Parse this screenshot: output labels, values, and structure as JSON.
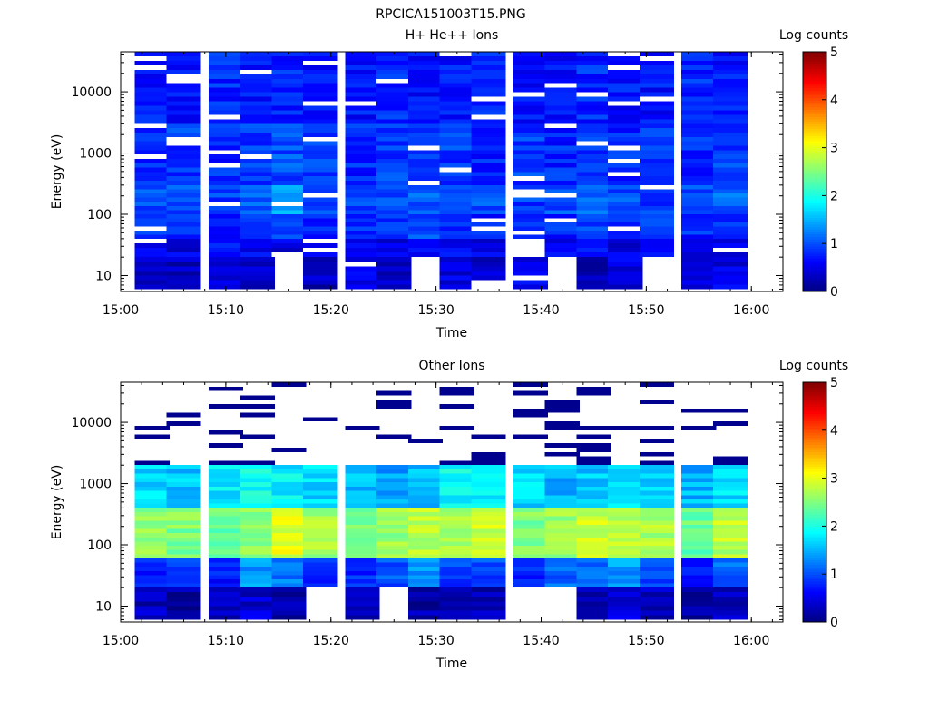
{
  "figure": {
    "title": "RPCICA151003T15.PNG"
  },
  "chart_data": [
    {
      "type": "heatmap",
      "title": "H+ He++ Ions",
      "xlabel": "Time",
      "ylabel": "Energy (eV)",
      "x_ticks": [
        "15:00",
        "15:10",
        "15:20",
        "15:30",
        "15:40",
        "15:50",
        "16:00"
      ],
      "xlim": [
        "15:00",
        "16:03"
      ],
      "y_scale": "log",
      "y_ticks": [
        10,
        100,
        1000,
        10000
      ],
      "ylim": [
        5.5,
        45000
      ],
      "colorbar": {
        "label": "Log counts",
        "min": 0,
        "max": 5,
        "ticks": [
          0,
          1,
          2,
          3,
          4,
          5
        ]
      },
      "time_bins": [
        "15:03",
        "15:06",
        "15:10",
        "15:13",
        "15:16",
        "15:19",
        "15:23",
        "15:26",
        "15:29",
        "15:32",
        "15:35",
        "15:39",
        "15:42",
        "15:45",
        "15:48",
        "15:51",
        "15:55",
        "15:58"
      ],
      "band_log_counts": [
        {
          "energy_range": [
            6,
            20
          ],
          "log_counts": [
            0.4,
            0.3,
            0.5,
            0.4,
            null,
            0.3,
            0.5,
            0.4,
            null,
            0.5,
            0.4,
            0.6,
            null,
            0.3,
            0.5,
            null,
            0.4,
            0.5
          ]
        },
        {
          "energy_range": [
            20,
            40
          ],
          "log_counts": [
            0.6,
            0.5,
            0.7,
            0.6,
            0.5,
            0.7,
            0.6,
            0.5,
            0.7,
            0.6,
            0.5,
            null,
            0.6,
            0.7,
            0.5,
            0.6,
            0.5,
            0.6
          ]
        },
        {
          "energy_range": [
            40,
            100
          ],
          "log_counts": [
            0.8,
            0.9,
            0.8,
            1.0,
            0.9,
            0.8,
            0.9,
            0.8,
            1.0,
            0.9,
            0.8,
            0.9,
            0.8,
            0.9,
            0.8,
            0.9,
            0.8,
            0.9
          ]
        },
        {
          "energy_range": [
            100,
            300
          ],
          "log_counts": [
            1.0,
            1.0,
            0.9,
            1.1,
            1.5,
            1.0,
            0.9,
            1.0,
            1.1,
            0.9,
            1.0,
            0.9,
            1.0,
            1.2,
            1.0,
            0.9,
            1.0,
            1.1
          ]
        },
        {
          "energy_range": [
            300,
            3000
          ],
          "log_counts": [
            0.8,
            0.9,
            0.8,
            0.9,
            1.0,
            0.9,
            0.8,
            0.9,
            0.8,
            0.9,
            0.8,
            0.9,
            0.8,
            0.9,
            0.8,
            0.9,
            0.8,
            0.9
          ]
        },
        {
          "energy_range": [
            3000,
            45000
          ],
          "log_counts": [
            0.7,
            0.7,
            0.8,
            0.7,
            0.8,
            0.7,
            0.7,
            0.8,
            0.7,
            0.7,
            0.8,
            0.7,
            0.7,
            0.8,
            0.7,
            0.7,
            0.8,
            0.7
          ]
        }
      ]
    },
    {
      "type": "heatmap",
      "title": "Other Ions",
      "xlabel": "Time",
      "ylabel": "Energy (eV)",
      "x_ticks": [
        "15:00",
        "15:10",
        "15:20",
        "15:30",
        "15:40",
        "15:50",
        "16:00"
      ],
      "xlim": [
        "15:00",
        "16:03"
      ],
      "y_scale": "log",
      "y_ticks": [
        10,
        100,
        1000,
        10000
      ],
      "ylim": [
        5.5,
        45000
      ],
      "colorbar": {
        "label": "Log counts",
        "min": 0,
        "max": 5,
        "ticks": [
          0,
          1,
          2,
          3,
          4,
          5
        ]
      },
      "time_bins": [
        "15:03",
        "15:06",
        "15:10",
        "15:13",
        "15:16",
        "15:19",
        "15:23",
        "15:26",
        "15:29",
        "15:32",
        "15:35",
        "15:39",
        "15:42",
        "15:45",
        "15:48",
        "15:51",
        "15:55",
        "15:58"
      ],
      "band_log_counts": [
        {
          "energy_range": [
            6,
            20
          ],
          "log_counts": [
            0.3,
            0.2,
            0.3,
            0.4,
            0.2,
            null,
            0.3,
            null,
            0.2,
            0.3,
            0.3,
            null,
            null,
            0.2,
            0.4,
            0.3,
            0.2,
            0.3
          ]
        },
        {
          "energy_range": [
            20,
            60
          ],
          "log_counts": [
            0.8,
            1.0,
            0.7,
            1.4,
            1.2,
            0.9,
            0.8,
            1.0,
            1.3,
            0.9,
            1.0,
            0.8,
            1.1,
            1.2,
            1.4,
            1.0,
            0.8,
            1.1
          ]
        },
        {
          "energy_range": [
            60,
            400
          ],
          "log_counts": [
            2.6,
            2.5,
            2.4,
            2.6,
            3.0,
            2.7,
            2.5,
            2.6,
            2.8,
            2.7,
            2.9,
            2.5,
            2.6,
            2.9,
            2.8,
            2.7,
            2.4,
            2.8
          ]
        },
        {
          "energy_range": [
            400,
            2000
          ],
          "log_counts": [
            1.7,
            1.6,
            1.8,
            1.9,
            1.8,
            1.7,
            1.5,
            1.4,
            1.6,
            1.9,
            1.8,
            1.7,
            1.5,
            1.6,
            1.8,
            1.7,
            1.5,
            1.7
          ]
        },
        {
          "energy_range": [
            2000,
            45000
          ],
          "log_counts": [
            0.1,
            0.1,
            0.1,
            0.1,
            0.1,
            0.1,
            0.1,
            0.1,
            0.1,
            0.1,
            0.1,
            0.1,
            0.1,
            0.1,
            0.1,
            0.1,
            0.1,
            0.1
          ]
        }
      ]
    }
  ]
}
